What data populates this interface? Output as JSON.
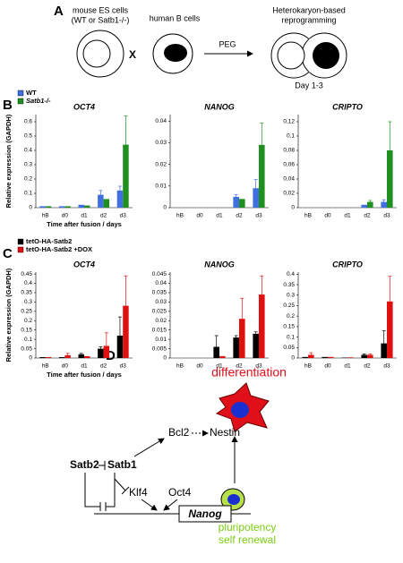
{
  "panel_a": {
    "label": "A",
    "es_cells": [
      "mouse ES cells",
      "(WT or Satb1-/-)"
    ],
    "b_cells": "human B cells",
    "cross": "X",
    "fusion": "PEG",
    "result": [
      "Heterokaryon-based",
      "reprogramming"
    ],
    "day": "Day 1-3"
  },
  "panel_b": {
    "label": "B"
  },
  "panel_c": {
    "label": "C"
  },
  "chart_data": [
    {
      "type": "bar",
      "title": "OCT4",
      "y_label": "Relative expression (GAPDH)",
      "x_label": "Time after fusion / days",
      "categories": [
        "hB",
        "d0",
        "d1",
        "d2",
        "d3"
      ],
      "series": [
        {
          "name": "WT",
          "color": "#3f6fe0",
          "values": [
            0.01,
            0.01,
            0.02,
            0.09,
            0.12
          ],
          "errors": [
            null,
            null,
            null,
            0.03,
            0.03
          ]
        },
        {
          "name": "Satb1-/-",
          "color": "#1f8f1f",
          "values": [
            0.01,
            0.01,
            0.015,
            0.06,
            0.44
          ],
          "errors": [
            null,
            null,
            null,
            null,
            0.2
          ]
        }
      ],
      "ylim": [
        0,
        0.65
      ],
      "yticks": [
        0,
        0.1,
        0.2,
        0.3,
        0.4,
        0.5,
        0.6
      ]
    },
    {
      "type": "bar",
      "title": "NANOG",
      "categories": [
        "hB",
        "d0",
        "d1",
        "d2",
        "d3"
      ],
      "series": [
        {
          "name": "WT",
          "color": "#3f6fe0",
          "values": [
            0,
            0,
            0,
            0.005,
            0.009
          ],
          "errors": [
            null,
            null,
            null,
            0.001,
            0.004
          ]
        },
        {
          "name": "Satb1-/-",
          "color": "#1f8f1f",
          "values": [
            0,
            0,
            0,
            0.004,
            0.029
          ],
          "errors": [
            null,
            null,
            null,
            null,
            0.01
          ]
        }
      ],
      "ylim": [
        0,
        0.043
      ],
      "yticks": [
        0,
        0.01,
        0.02,
        0.03,
        0.04
      ]
    },
    {
      "type": "bar",
      "title": "CRIPTO",
      "categories": [
        "hB",
        "d0",
        "d1",
        "d2",
        "d3"
      ],
      "series": [
        {
          "name": "WT",
          "color": "#3f6fe0",
          "values": [
            0,
            0,
            0,
            0.004,
            0.008
          ],
          "errors": [
            null,
            null,
            null,
            null,
            0.003
          ]
        },
        {
          "name": "Satb1-/-",
          "color": "#1f8f1f",
          "values": [
            0,
            0,
            0,
            0.008,
            0.08
          ],
          "errors": [
            null,
            null,
            null,
            0.002,
            0.04
          ]
        }
      ],
      "ylim": [
        0,
        0.13
      ],
      "yticks": [
        0,
        {
          "value": 0.02,
          "label": "0,02"
        },
        {
          "value": 0.04,
          "label": "0,04"
        },
        {
          "value": 0.06,
          "label": "0,06"
        },
        {
          "value": 0.08,
          "label": "0,08"
        },
        {
          "value": 0.1,
          "label": "0,1"
        },
        {
          "value": 0.12,
          "label": "0,12"
        }
      ]
    },
    {
      "type": "bar",
      "title": "OCT4",
      "y_label": "Relative expression (GAPDH)",
      "x_label": "Time after fusion / days",
      "categories": [
        "hB",
        "d0",
        "d1",
        "d2",
        "d3"
      ],
      "series": [
        {
          "name": "tetO-HA-Satb2",
          "color": "#000000",
          "values": [
            0.005,
            0.005,
            0.02,
            0.05,
            0.12
          ],
          "errors": [
            null,
            null,
            0.005,
            0.01,
            0.1
          ]
        },
        {
          "name": "tetO-HA-Satb2 +DOX",
          "color": "#e01010",
          "values": [
            0.005,
            0.015,
            0.01,
            0.065,
            0.28
          ],
          "errors": [
            null,
            0.01,
            null,
            0.07,
            0.16
          ]
        }
      ],
      "ylim": [
        0,
        0.46
      ],
      "yticks": [
        0,
        0.05,
        0.1,
        0.15,
        0.2,
        0.25,
        0.3,
        0.35,
        0.4,
        0.45
      ]
    },
    {
      "type": "bar",
      "title": "NANOG",
      "categories": [
        "hB",
        "d0",
        "d1",
        "d2",
        "d3"
      ],
      "series": [
        {
          "name": "tetO-HA-Satb2",
          "color": "#000000",
          "values": [
            0,
            0,
            0.006,
            0.011,
            0.013
          ],
          "errors": [
            null,
            null,
            0.006,
            0.001,
            0.001
          ]
        },
        {
          "name": "tetO-HA-Satb2 +DOX",
          "color": "#e01010",
          "values": [
            0,
            0,
            0.001,
            0.021,
            0.034
          ],
          "errors": [
            null,
            null,
            null,
            0.011,
            0.01
          ]
        }
      ],
      "ylim": [
        0,
        0.046
      ],
      "yticks": [
        0,
        0.005,
        0.01,
        0.015,
        0.02,
        0.025,
        0.03,
        0.035,
        0.04,
        0.045
      ]
    },
    {
      "type": "bar",
      "title": "CRIPTO",
      "categories": [
        "hB",
        "d0",
        "d1",
        "d2",
        "d3"
      ],
      "series": [
        {
          "name": "tetO-HA-Satb2",
          "color": "#000000",
          "values": [
            0.005,
            0.005,
            0.002,
            0.015,
            0.07
          ],
          "errors": [
            null,
            null,
            null,
            0.005,
            0.06
          ]
        },
        {
          "name": "tetO-HA-Satb2 +DOX",
          "color": "#e01010",
          "values": [
            0.015,
            0.005,
            0.003,
            0.015,
            0.27
          ],
          "errors": [
            0.01,
            null,
            null,
            0.005,
            0.12
          ]
        }
      ],
      "ylim": [
        0,
        0.41
      ],
      "yticks": [
        0,
        0.05,
        0.1,
        0.15,
        0.2,
        0.25,
        0.3,
        0.35,
        0.4
      ]
    }
  ],
  "panel_d": {
    "label": "D",
    "differentiation": "differentiation",
    "bcl2": "Bcl2",
    "nestin": "Nestin",
    "satb2": "Satb2",
    "satb1": "Satb1",
    "klf4": "Klf4",
    "oct4": "Oct4",
    "nanog": "Nanog",
    "pluripotency": "pluripotency",
    "self_renewal": "self renewal"
  }
}
